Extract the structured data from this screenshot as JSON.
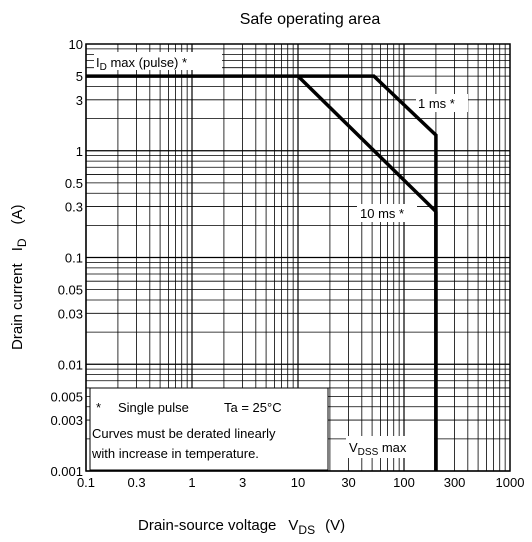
{
  "chart_data": {
    "type": "line",
    "title": "Safe operating area",
    "xlabel": {
      "main": "Drain-source voltage",
      "symbol": "V",
      "sub": "DS",
      "unit": "(V)"
    },
    "ylabel": {
      "main": "Drain current",
      "symbol": "I",
      "sub": "D",
      "unit": "(A)"
    },
    "x_scale": "log",
    "y_scale": "log",
    "xlim": [
      0.1,
      1000
    ],
    "ylim": [
      0.001,
      10
    ],
    "grid": true,
    "x_ticks": [
      {
        "value": 0.1,
        "label": "0.1"
      },
      {
        "value": 0.3,
        "label": "0.3"
      },
      {
        "value": 1,
        "label": "1"
      },
      {
        "value": 3,
        "label": "3"
      },
      {
        "value": 10,
        "label": "10"
      },
      {
        "value": 30,
        "label": "30"
      },
      {
        "value": 100,
        "label": "100"
      },
      {
        "value": 300,
        "label": "300"
      },
      {
        "value": 1000,
        "label": "1000"
      }
    ],
    "y_ticks": [
      {
        "value": 10,
        "label": "10"
      },
      {
        "value": 5,
        "label": "5"
      },
      {
        "value": 3,
        "label": "3"
      },
      {
        "value": 1,
        "label": "1"
      },
      {
        "value": 0.5,
        "label": "0.5"
      },
      {
        "value": 0.3,
        "label": "0.3"
      },
      {
        "value": 0.1,
        "label": "0.1"
      },
      {
        "value": 0.05,
        "label": "0.05"
      },
      {
        "value": 0.03,
        "label": "0.03"
      },
      {
        "value": 0.01,
        "label": "0.01"
      },
      {
        "value": 0.005,
        "label": "0.005"
      },
      {
        "value": 0.003,
        "label": "0.003"
      },
      {
        "value": 0.001,
        "label": "0.001"
      }
    ],
    "series": [
      {
        "label_main": "I",
        "label_sub": "D",
        "label_rest": " max (pulse) *",
        "points": [
          [
            0.1,
            5
          ],
          [
            10,
            5
          ]
        ]
      },
      {
        "label_main": "1 ms *",
        "label_sub": "",
        "label_rest": "",
        "points": [
          [
            10,
            5
          ],
          [
            52,
            5
          ],
          [
            200,
            1.4
          ],
          [
            200,
            0.001
          ]
        ]
      },
      {
        "label_main": "10 ms *",
        "label_sub": "",
        "label_rest": "",
        "points": [
          [
            10,
            5
          ],
          [
            200,
            0.27
          ]
        ]
      },
      {
        "label_main": "V",
        "label_sub": "DSS",
        "label_rest": " max",
        "points": [
          [
            200,
            0.27
          ],
          [
            200,
            0.001
          ]
        ]
      }
    ],
    "notes": {
      "line1_star": "*",
      "line1_text": "Single pulse",
      "line1_cond": "Ta = 25°C",
      "line2": "Curves must be derated linearly",
      "line3": "with increase in temperature."
    },
    "colors": {
      "axis": "#000000",
      "grid": "#000000",
      "curve": "#000000",
      "background": "#ffffff"
    }
  }
}
